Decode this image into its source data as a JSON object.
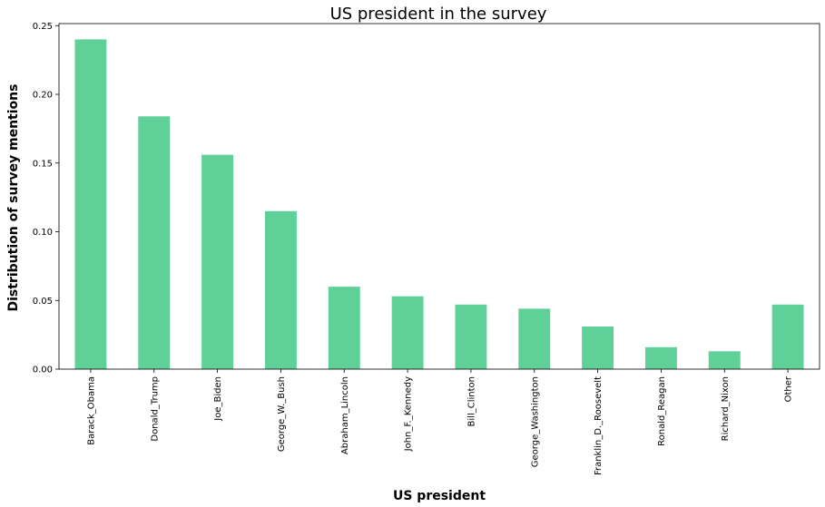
{
  "chart_data": {
    "type": "bar",
    "title": "US president in the survey",
    "xlabel": "US president",
    "ylabel": "Distribution of survey mentions",
    "categories": [
      "Barack_Obama",
      "Donald_Trump",
      "Joe_Biden",
      "George_W._Bush",
      "Abraham_Lincoln",
      "John_F._Kennedy",
      "Bill_Clinton",
      "George_Washington",
      "Franklin_D._Roosevelt",
      "Ronald_Reagan",
      "Richard_Nixon",
      "Other"
    ],
    "values": [
      0.24,
      0.184,
      0.156,
      0.115,
      0.06,
      0.053,
      0.047,
      0.044,
      0.031,
      0.016,
      0.013,
      0.047
    ],
    "ylim": [
      0,
      0.25
    ],
    "yticks": [
      0.0,
      0.05,
      0.1,
      0.15,
      0.2,
      0.25
    ],
    "ytick_labels": [
      "0.00",
      "0.05",
      "0.10",
      "0.15",
      "0.20",
      "0.25"
    ],
    "bar_color": "#5fd198",
    "grid": false,
    "legend": false
  }
}
